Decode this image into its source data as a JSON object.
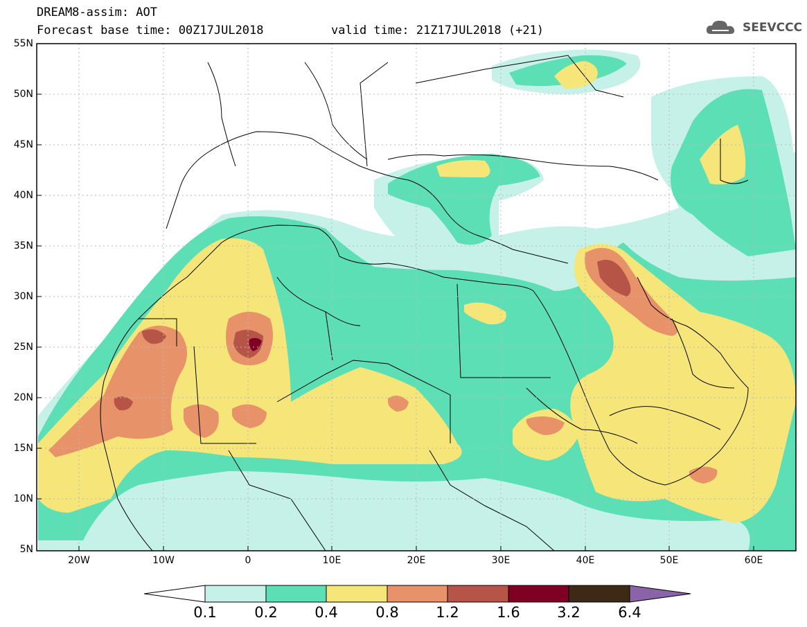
{
  "header": {
    "title": "DREAM8-assim: AOT",
    "base_time": "Forecast base time: 00Z17JUL2018",
    "valid_time": "valid time: 21Z17JUL2018 (+21)"
  },
  "logo": {
    "text": "SEEVCCC",
    "icon": "cloud-icon"
  },
  "axes": {
    "lat_labels": [
      "55N",
      "50N",
      "45N",
      "40N",
      "35N",
      "30N",
      "25N",
      "20N",
      "15N",
      "10N",
      "5N"
    ],
    "lon_labels": [
      "20W",
      "10W",
      "0",
      "10E",
      "20E",
      "30E",
      "40E",
      "50E",
      "60E"
    ],
    "lat_range": [
      5,
      55
    ],
    "lon_range": [
      -25,
      65
    ]
  },
  "colorbar": {
    "labels": [
      "0.1",
      "0.2",
      "0.4",
      "0.8",
      "1.2",
      "1.6",
      "3.2",
      "6.4"
    ],
    "colors": [
      "#ffffff",
      "#c5f1e9",
      "#5ddfb6",
      "#f6e67a",
      "#e8926a",
      "#b55447",
      "#800024",
      "#3e2816",
      "#8a63a8"
    ]
  }
}
